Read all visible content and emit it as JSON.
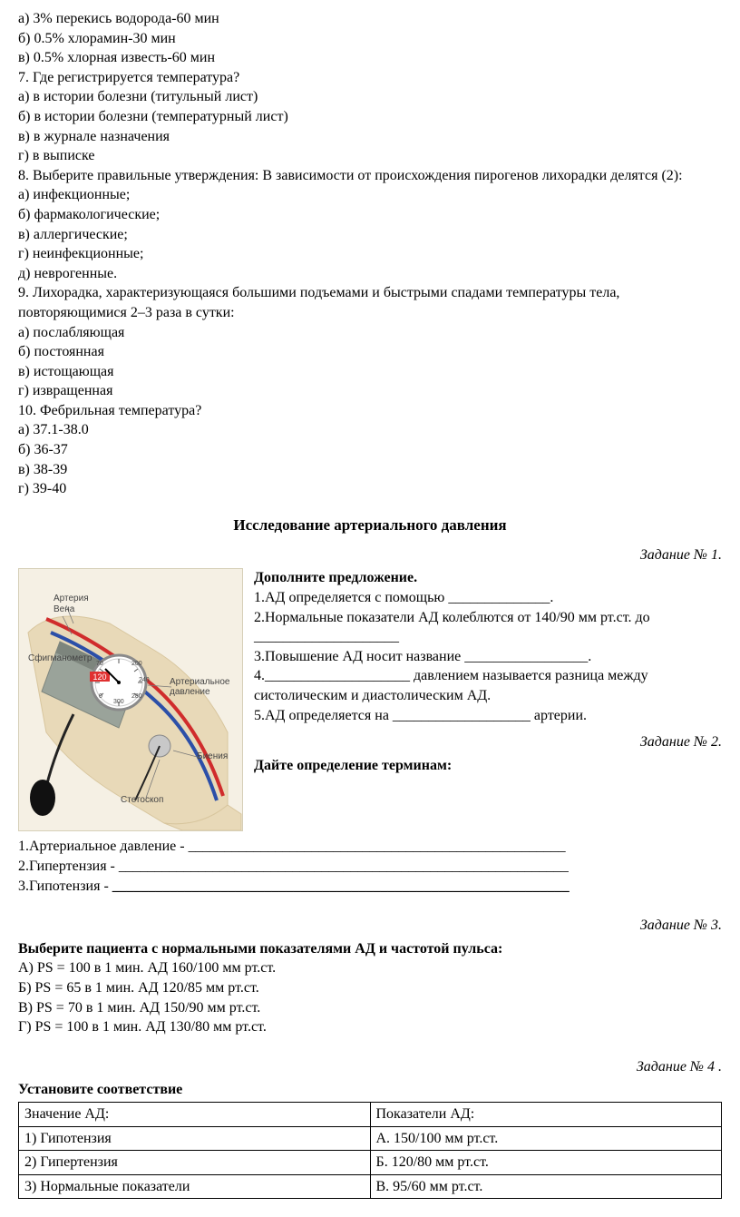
{
  "quiz_top": {
    "lines": [
      "а) 3% перекись водорода-60 мин",
      "б) 0.5% хлорамин-30 мин",
      "в) 0.5% хлорная известь-60 мин",
      "7. Где регистрируется температура?",
      "а) в истории болезни (титульный лист)",
      "б) в истории болезни (температурный лист)",
      "в) в журнале назначения",
      "г) в выписке",
      "8. Выберите правильные утверждения: В зависимости от происхождения пирогенов лихорадки делятся (2):",
      "а) инфекционные;",
      "б) фармакологические;",
      "в) аллергические;",
      "г) неинфекционные;",
      "д) неврогенные.",
      "9. Лихорадка, характеризующаяся большими подъемами и быстрыми спадами температуры тела, повторяющимися 2–3 раза в сутки:",
      "а) послабляющая",
      "б) постоянная",
      "в) истощающая",
      "г) извращенная",
      "10. Фебрильная температура?",
      "а) 37.1-38.0",
      "б) 36-37",
      "в) 38-39",
      "г) 39-40"
    ]
  },
  "section_title": "Исследование артериального давления",
  "task1": {
    "label": "Задание № 1.",
    "heading": "Дополните предложение.",
    "items": [
      "1.АД определяется с помощью ______________.",
      "2.Нормальные показатели АД колеблются от 140/90 мм рт.ст. до ____________________",
      "3.Повышение АД носит название _________________.",
      "4.____________________ давлением называется разница между систолическим и диастолическим АД.",
      "5.АД определяется на ___________________ артерии."
    ]
  },
  "task2": {
    "label": "Задание № 2.",
    "heading": "Дайте определение терминам:",
    "items": [
      "1.Артериальное давление - ____________________________________________________",
      "2.Гипертензия - ______________________________________________________________",
      "3.Гипотензия - "
    ],
    "last_underline": "_______________________________________________________________"
  },
  "task3": {
    "label": "Задание № 3.",
    "heading": "Выберите пациента с нормальными показателями АД и частотой пульса:",
    "options": [
      "А) PS = 100 в 1 мин. АД 160/100 мм рт.ст.",
      "Б)  PS = 65 в 1 мин. АД 120/85 мм рт.ст.",
      "В)  PS = 70 в 1 мин. АД 150/90 мм рт.ст.",
      "Г)  PS = 100 в 1 мин. АД 130/80 мм рт.ст."
    ]
  },
  "task4": {
    "label": "Задание № 4 .",
    "heading": "Установите соответствие",
    "table": {
      "header": [
        "Значение АД:",
        "Показатели АД:"
      ],
      "rows": [
        [
          "1) Гипотензия",
          "А. 150/100 мм рт.ст."
        ],
        [
          "2) Гипертензия",
          "Б. 120/80 мм рт.ст."
        ],
        [
          "3) Нормальные показатели",
          "В.  95/60 мм рт.ст."
        ]
      ]
    }
  },
  "figure": {
    "labels": {
      "artery": "Артерия",
      "vein": "Вена",
      "sphygmo": "Сфигманометр",
      "pressure": "Артериальное\nдавление",
      "beats": "Биения",
      "stethoscope": "Стетоскоп",
      "gauge_120": "120",
      "gauge_nums": [
        "200",
        "240",
        "280",
        "300",
        "0",
        "70"
      ]
    },
    "colors": {
      "skin": "#e8d9b8",
      "skin_shade": "#d8c69e",
      "cuff": "#9aa39a",
      "cuff_dark": "#7d857d",
      "artery": "#d02c2c",
      "vein": "#2c4fa8",
      "gauge_face": "#ffffff",
      "gauge_ring": "#8a8a8a",
      "gauge_red": "#e03030",
      "tube": "#222",
      "bulb": "#111",
      "bg": "#f5f0e4"
    }
  }
}
